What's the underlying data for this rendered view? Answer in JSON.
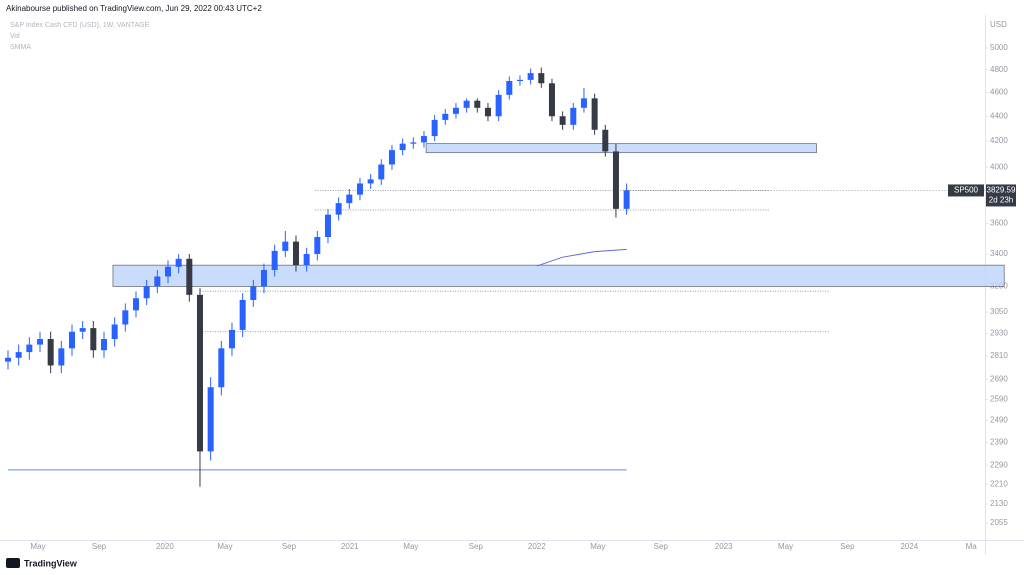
{
  "header": {
    "published": "Akinabourse published on TradingView.com, Jun 29, 2022 00:43 UTC+2"
  },
  "chart_data": {
    "type": "candlestick",
    "title": "S&P Index Cash CFD (USD), 1W, VANTAGE",
    "indicators": [
      "Vol",
      "SMMA"
    ],
    "currency": "USD",
    "symbol": "SP500",
    "countdown": "2d 23h",
    "up_color": "#2962ff",
    "down_color": "#363a45",
    "open": [
      2780,
      2800,
      2830,
      2870,
      2900,
      2760,
      2850,
      2940,
      2960,
      2840,
      2900,
      2980,
      3060,
      3130,
      3200,
      3260,
      3320,
      3370,
      3150,
      2350,
      2650,
      2850,
      2950,
      3120,
      3200,
      3300,
      3420,
      3480,
      3330,
      3400,
      3510,
      3660,
      3740,
      3800,
      3880,
      3910,
      4020,
      4130,
      4180,
      4190,
      4240,
      4370,
      4420,
      4470,
      4530,
      4470,
      4400,
      4580,
      4700,
      4710,
      4770,
      4680,
      4400,
      4330,
      4470,
      4550,
      4290,
      4120,
      3700
    ],
    "high": [
      2840,
      2870,
      2910,
      2940,
      2940,
      2890,
      2980,
      3000,
      3000,
      2940,
      3020,
      3100,
      3170,
      3240,
      3300,
      3360,
      3400,
      3400,
      3190,
      2700,
      2890,
      2990,
      3160,
      3240,
      3340,
      3460,
      3550,
      3520,
      3440,
      3550,
      3700,
      3780,
      3840,
      3920,
      3950,
      4060,
      4170,
      4220,
      4230,
      4280,
      4410,
      4460,
      4510,
      4550,
      4550,
      4510,
      4620,
      4740,
      4750,
      4810,
      4820,
      4720,
      4440,
      4510,
      4640,
      4590,
      4330,
      4180,
      3880
    ],
    "low": [
      2740,
      2760,
      2790,
      2830,
      2720,
      2720,
      2810,
      2900,
      2800,
      2800,
      2860,
      2940,
      3020,
      3090,
      3160,
      3220,
      3280,
      3110,
      2200,
      2310,
      2610,
      2810,
      2910,
      3080,
      3160,
      3260,
      3380,
      3290,
      3290,
      3360,
      3470,
      3620,
      3700,
      3760,
      3840,
      3870,
      3980,
      4090,
      4140,
      4150,
      4200,
      4330,
      4380,
      4430,
      4430,
      4360,
      4360,
      4540,
      4660,
      4670,
      4640,
      4360,
      4290,
      4290,
      4430,
      4250,
      4080,
      3640,
      3660
    ],
    "close": [
      2800,
      2830,
      2870,
      2900,
      2760,
      2850,
      2940,
      2960,
      2840,
      2900,
      2980,
      3060,
      3130,
      3200,
      3260,
      3320,
      3370,
      3150,
      2350,
      2650,
      2850,
      2950,
      3120,
      3200,
      3300,
      3420,
      3480,
      3330,
      3400,
      3510,
      3660,
      3740,
      3800,
      3880,
      3910,
      4020,
      4130,
      4180,
      4190,
      4240,
      4370,
      4420,
      4470,
      4530,
      4470,
      4400,
      4580,
      4700,
      4710,
      4770,
      4680,
      4400,
      4330,
      4470,
      4550,
      4290,
      4120,
      3700,
      3829.59
    ],
    "xlim": [
      -0.75,
      91.6
    ],
    "xticks": [
      {
        "value": 2.81,
        "label": "May"
      },
      {
        "value": 8.53,
        "label": "Sep"
      },
      {
        "value": 14.71,
        "label": "2020"
      },
      {
        "value": 20.34,
        "label": "May"
      },
      {
        "value": 26.34,
        "label": "Sep"
      },
      {
        "value": 32.05,
        "label": "2021"
      },
      {
        "value": 37.77,
        "label": "May"
      },
      {
        "value": 43.86,
        "label": "Sep"
      },
      {
        "value": 49.58,
        "label": "2022"
      },
      {
        "value": 55.3,
        "label": "May"
      },
      {
        "value": 61.2,
        "label": "Sep"
      },
      {
        "value": 67.1,
        "label": "2023"
      },
      {
        "value": 72.9,
        "label": "May"
      },
      {
        "value": 78.7,
        "label": "Sep"
      },
      {
        "value": 84.5,
        "label": "2024"
      },
      {
        "value": 90.3,
        "label": "Ma"
      }
    ],
    "ylim": [
      1991,
      5318
    ],
    "yscale": "log",
    "yticks": [
      5000,
      4800,
      4600,
      4400,
      4200,
      4000,
      3600,
      3400,
      3200,
      3050,
      2930,
      2810,
      2690,
      2590,
      2490,
      2390,
      2290,
      2210,
      2130,
      2055
    ],
    "zones": [
      {
        "top": 4180,
        "bottom": 4110,
        "start": 39.2,
        "end": 75.8,
        "color": "#bbd3fb"
      },
      {
        "top": 3330,
        "bottom": 3200,
        "start": 9.84,
        "end": 93.4,
        "color": "#bbd3fb"
      }
    ],
    "levels": [
      {
        "value": 3830,
        "start": 28.8,
        "end": 71.4,
        "style": "dotted"
      },
      {
        "value": 3692,
        "start": 28.8,
        "end": 71.4,
        "style": "dotted"
      },
      {
        "value": 3172,
        "start": 18.0,
        "end": 77.0,
        "style": "dotted"
      },
      {
        "value": 2940,
        "start": 18.0,
        "end": 77.0,
        "style": "dotted"
      },
      {
        "value": 2270,
        "start": 0,
        "end": 58,
        "style": "solid"
      }
    ],
    "smma": {
      "color": "#5b6bd6",
      "x": [
        49.6,
        52,
        55,
        58
      ],
      "values": [
        3325,
        3380,
        3415,
        3430
      ]
    }
  },
  "footer": {
    "brand": "TradingView"
  }
}
